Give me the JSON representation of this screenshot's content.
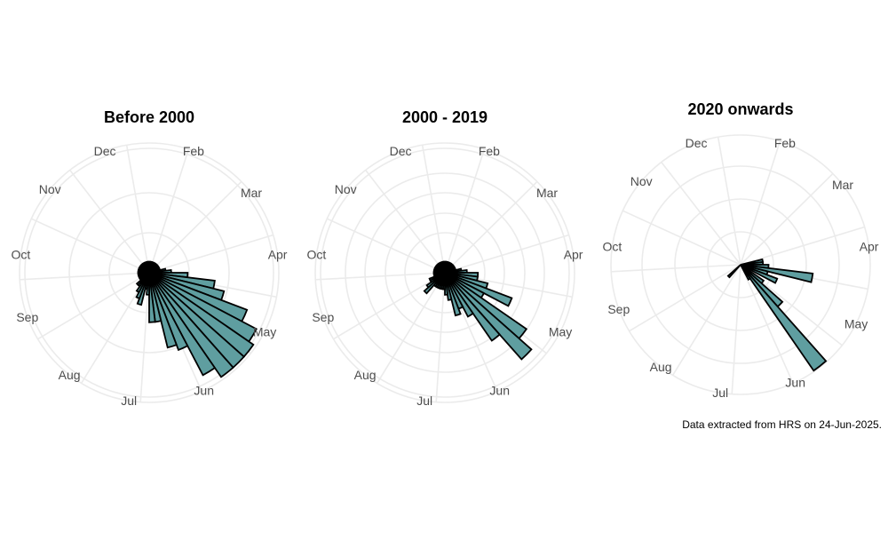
{
  "caption": "Data extracted from HRS on 24-Jun-2025.",
  "chart_data": [
    {
      "type": "polar-bar",
      "title": "Before 2000",
      "month_labels": [
        "Dec",
        "Feb",
        "Mar",
        "Apr",
        "May",
        "Jun",
        "Jul",
        "Aug",
        "Sep",
        "Oct",
        "Nov"
      ],
      "bars": [
        {
          "week": 1,
          "value": 2
        },
        {
          "week": 2,
          "value": 2
        },
        {
          "week": 3,
          "value": 2
        },
        {
          "week": 4,
          "value": 2
        },
        {
          "week": 5,
          "value": 2
        },
        {
          "week": 6,
          "value": 2
        },
        {
          "week": 7,
          "value": 2
        },
        {
          "week": 8,
          "value": 2
        },
        {
          "week": 9,
          "value": 2
        },
        {
          "week": 10,
          "value": 2
        },
        {
          "week": 11,
          "value": 2
        },
        {
          "week": 12,
          "value": 3
        },
        {
          "week": 13,
          "value": 4
        },
        {
          "week": 14,
          "value": 7
        },
        {
          "week": 15,
          "value": 12
        },
        {
          "week": 16,
          "value": 14
        },
        {
          "week": 17,
          "value": 19
        },
        {
          "week": 18,
          "value": 22
        },
        {
          "week": 19,
          "value": 23
        },
        {
          "week": 20,
          "value": 23
        },
        {
          "week": 21,
          "value": 23
        },
        {
          "week": 22,
          "value": 21
        },
        {
          "week": 23,
          "value": 15
        },
        {
          "week": 24,
          "value": 14
        },
        {
          "week": 25,
          "value": 9
        },
        {
          "week": 26,
          "value": 9
        },
        {
          "week": 27,
          "value": 4
        },
        {
          "week": 28,
          "value": 3
        },
        {
          "week": 29,
          "value": 6
        },
        {
          "week": 30,
          "value": 5
        },
        {
          "week": 31,
          "value": 4
        },
        {
          "week": 32,
          "value": 3
        },
        {
          "week": 33,
          "value": 3
        },
        {
          "week": 34,
          "value": 2
        },
        {
          "week": 35,
          "value": 2
        },
        {
          "week": 36,
          "value": 2
        },
        {
          "week": 37,
          "value": 2
        },
        {
          "week": 38,
          "value": 2
        },
        {
          "week": 39,
          "value": 2
        },
        {
          "week": 40,
          "value": 2
        },
        {
          "week": 41,
          "value": 2
        },
        {
          "week": 42,
          "value": 2
        },
        {
          "week": 43,
          "value": 2
        },
        {
          "week": 44,
          "value": 2
        },
        {
          "week": 45,
          "value": 2
        },
        {
          "week": 46,
          "value": 2
        },
        {
          "week": 47,
          "value": 2
        },
        {
          "week": 48,
          "value": 2
        },
        {
          "week": 49,
          "value": 2
        },
        {
          "week": 50,
          "value": 2
        },
        {
          "week": 51,
          "value": 2
        },
        {
          "week": 52,
          "value": 2
        }
      ]
    },
    {
      "type": "polar-bar",
      "title": "2000 - 2019",
      "month_labels": [
        "Dec",
        "Feb",
        "Mar",
        "Apr",
        "May",
        "Jun",
        "Jul",
        "Aug",
        "Sep",
        "Oct",
        "Nov"
      ],
      "bars": [
        {
          "week": 1,
          "value": 2
        },
        {
          "week": 2,
          "value": 2
        },
        {
          "week": 3,
          "value": 2
        },
        {
          "week": 4,
          "value": 2
        },
        {
          "week": 5,
          "value": 2
        },
        {
          "week": 6,
          "value": 2
        },
        {
          "week": 7,
          "value": 2
        },
        {
          "week": 8,
          "value": 2
        },
        {
          "week": 9,
          "value": 2
        },
        {
          "week": 10,
          "value": 2
        },
        {
          "week": 11,
          "value": 2
        },
        {
          "week": 12,
          "value": 3
        },
        {
          "week": 13,
          "value": 4
        },
        {
          "week": 14,
          "value": 6
        },
        {
          "week": 15,
          "value": 6
        },
        {
          "week": 16,
          "value": 8
        },
        {
          "week": 17,
          "value": 13
        },
        {
          "week": 18,
          "value": 8
        },
        {
          "week": 19,
          "value": 18
        },
        {
          "week": 20,
          "value": 21
        },
        {
          "week": 21,
          "value": 15
        },
        {
          "week": 22,
          "value": 9
        },
        {
          "week": 23,
          "value": 7
        },
        {
          "week": 24,
          "value": 8
        },
        {
          "week": 25,
          "value": 5
        },
        {
          "week": 26,
          "value": 4
        },
        {
          "week": 27,
          "value": 3
        },
        {
          "week": 28,
          "value": 3
        },
        {
          "week": 29,
          "value": 3
        },
        {
          "week": 30,
          "value": 3
        },
        {
          "week": 31,
          "value": 3
        },
        {
          "week": 32,
          "value": 3
        },
        {
          "week": 33,
          "value": 5
        },
        {
          "week": 34,
          "value": 4
        },
        {
          "week": 35,
          "value": 3
        },
        {
          "week": 36,
          "value": 3
        },
        {
          "week": 37,
          "value": 2
        },
        {
          "week": 38,
          "value": 2
        },
        {
          "week": 39,
          "value": 2
        },
        {
          "week": 40,
          "value": 2
        },
        {
          "week": 41,
          "value": 2
        },
        {
          "week": 42,
          "value": 2
        },
        {
          "week": 43,
          "value": 2
        },
        {
          "week": 44,
          "value": 2
        },
        {
          "week": 45,
          "value": 2
        },
        {
          "week": 46,
          "value": 2
        },
        {
          "week": 47,
          "value": 2
        },
        {
          "week": 48,
          "value": 2
        },
        {
          "week": 49,
          "value": 2
        },
        {
          "week": 50,
          "value": 2
        },
        {
          "week": 51,
          "value": 2
        },
        {
          "week": 52,
          "value": 2
        }
      ]
    },
    {
      "type": "polar-bar",
      "title": "2020 onwards",
      "month_labels": [
        "Dec",
        "Feb",
        "Mar",
        "Apr",
        "May",
        "Jun",
        "Jul",
        "Aug",
        "Sep",
        "Oct",
        "Nov"
      ],
      "bars": [
        {
          "week": 12,
          "value": 4
        },
        {
          "week": 13,
          "value": 4
        },
        {
          "week": 14,
          "value": 5
        },
        {
          "week": 15,
          "value": 13
        },
        {
          "week": 16,
          "value": 5
        },
        {
          "week": 17,
          "value": 7
        },
        {
          "week": 19,
          "value": 5
        },
        {
          "week": 20,
          "value": 10
        },
        {
          "week": 21,
          "value": 23
        },
        {
          "week": 22,
          "value": 3
        },
        {
          "week": 33,
          "value": 3
        }
      ]
    }
  ]
}
